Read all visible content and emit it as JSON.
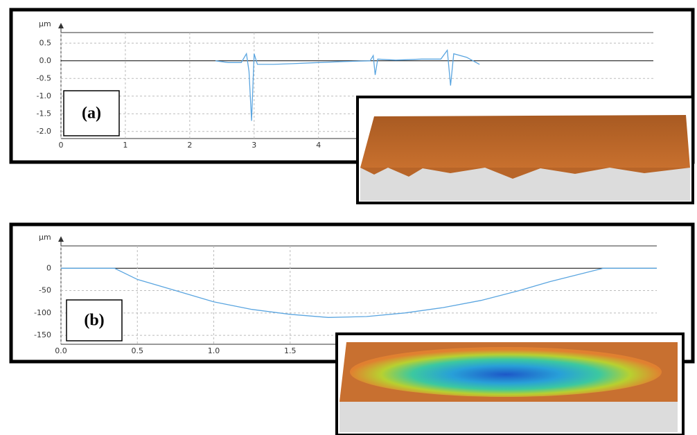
{
  "chart_data": [
    {
      "type": "line",
      "label": "(a)",
      "y_label": "μm",
      "xlim": [
        0,
        9.2
      ],
      "ylim": [
        -2.2,
        0.8
      ],
      "xticks": [
        0,
        1,
        2,
        3,
        4
      ],
      "yticks": [
        0.5,
        {
          "value": 0,
          "label": "0.0"
        },
        -0.5,
        {
          "value": -1,
          "label": "-1.0"
        },
        -1.5,
        {
          "value": -2,
          "label": "-2.0"
        }
      ],
      "grid": true,
      "series": [
        {
          "color": "#5aa5e0",
          "x": [
            2.4,
            2.6,
            2.8,
            2.88,
            2.92,
            2.96,
            3.0,
            3.05,
            3.3,
            3.6,
            4.0,
            4.4,
            4.8,
            4.85,
            4.88,
            4.92,
            5.2,
            5.6,
            5.9,
            6.0,
            6.05,
            6.1,
            6.3,
            6.5
          ],
          "values": [
            0,
            -0.05,
            -0.05,
            0.2,
            -0.3,
            -1.7,
            0.2,
            -0.1,
            -0.1,
            -0.08,
            -0.05,
            -0.02,
            0,
            0.15,
            -0.4,
            0.05,
            0.02,
            0.05,
            0.05,
            0.3,
            -0.7,
            0.2,
            0.1,
            -0.1
          ]
        }
      ]
    },
    {
      "type": "line",
      "label": "(b)",
      "y_label": "μm",
      "xlim": [
        0,
        3.9
      ],
      "ylim": [
        -170,
        50
      ],
      "xticks": [
        {
          "value": 0,
          "label": "0.0"
        },
        0.5,
        {
          "value": 1,
          "label": "1.0"
        },
        1.5
      ],
      "yticks": [
        0,
        -50,
        -100,
        -150
      ],
      "grid": true,
      "series": [
        {
          "color": "#5aa5e0",
          "x": [
            0,
            0.35,
            0.5,
            0.75,
            1.0,
            1.25,
            1.5,
            1.75,
            2.0,
            2.25,
            2.5,
            2.75,
            3.0,
            3.2,
            3.55,
            3.9
          ],
          "values": [
            0,
            0,
            -25,
            -50,
            -75,
            -92,
            -103,
            -110,
            -108,
            -100,
            -88,
            -72,
            -50,
            -30,
            0,
            0
          ]
        }
      ]
    }
  ]
}
